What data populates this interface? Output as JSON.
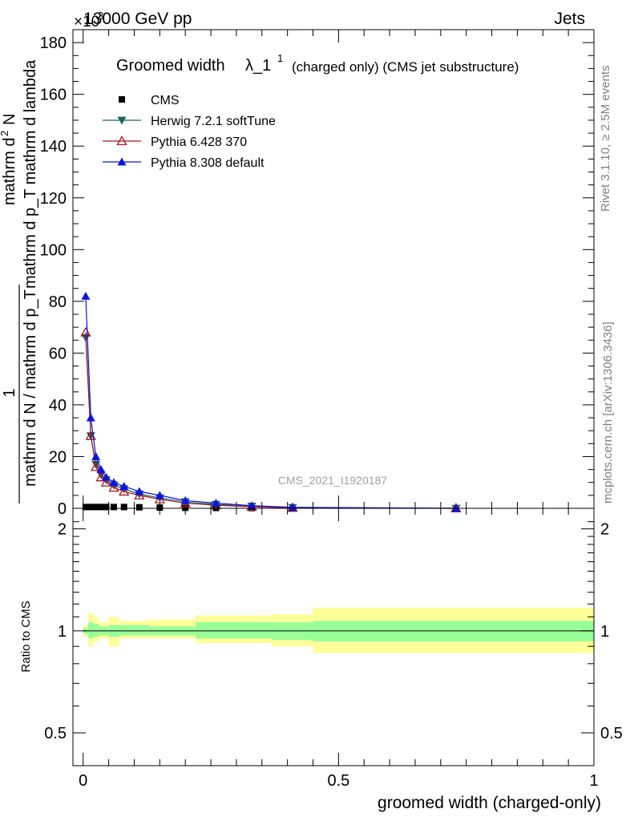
{
  "header": {
    "left": "13000 GeV pp",
    "right": "Jets",
    "exponent": "×10",
    "exponent_power": "3"
  },
  "side_labels": {
    "rivet": "Rivet 3.1.10, ≥ 2.5M events",
    "mcplots": "mcplots.cern.ch [arXiv:1306.3436]"
  },
  "watermark": "CMS_2021_I1920187",
  "main_title": {
    "text": "Groomed width",
    "symbol": "λ_1",
    "sup": "1",
    "suffix": "(charged only) (CMS jet substructure)"
  },
  "ylabel": {
    "numerator_line1": "mathrm d",
    "numerator_sup": "2",
    "numerator_line2": "N",
    "denominator": "mathrm d p_T mathrm d lambda",
    "prefix_num": "1",
    "prefix_den": "mathrm d N / mathrm d p_T"
  },
  "ratio_ylabel": "Ratio to CMS",
  "xlabel": "groomed width (charged-only)",
  "colors": {
    "cms": "#000000",
    "herwig": "#1f6363",
    "pythia6": "#a3191f",
    "pythia8": "#0a14e0",
    "band_outer": "#ffff99",
    "band_inner": "#99ff99"
  },
  "chart_data": [
    {
      "type": "line",
      "panel": "main",
      "ylim": [
        0,
        185
      ],
      "xlim": [
        -0.02,
        1.0
      ],
      "y_scale_factor": "×10^3",
      "y_ticks": [
        0,
        20,
        40,
        60,
        80,
        100,
        120,
        140,
        160,
        180
      ],
      "x_ticks": [
        0,
        0.5,
        1
      ],
      "x_tick_labels": [
        "0",
        "0.5",
        "1"
      ],
      "legend": "top-left",
      "series": [
        {
          "name": "CMS",
          "marker": "square",
          "x": [
            0.005,
            0.015,
            0.025,
            0.035,
            0.045,
            0.06,
            0.08,
            0.11,
            0.15,
            0.2,
            0.26,
            0.33,
            0.41,
            0.73
          ],
          "y": [
            0.5,
            0.5,
            0.5,
            0.5,
            0.5,
            0.5,
            0.5,
            0.4,
            0.3,
            0.2,
            0.15,
            0.1,
            0.05,
            0.0
          ]
        },
        {
          "name": "Herwig 7.2.1 softTune",
          "marker": "triangle-down",
          "x": [
            0.005,
            0.015,
            0.025,
            0.035,
            0.045,
            0.06,
            0.08,
            0.11,
            0.15,
            0.2,
            0.26,
            0.33,
            0.41,
            0.73
          ],
          "y": [
            66,
            28,
            17,
            13,
            11,
            9,
            7.5,
            5.5,
            4,
            2.5,
            1.5,
            0.8,
            0.3,
            0.0
          ]
        },
        {
          "name": "Pythia 6.428 370",
          "marker": "triangle-up-open",
          "x": [
            0.005,
            0.015,
            0.025,
            0.035,
            0.045,
            0.06,
            0.08,
            0.11,
            0.15,
            0.2,
            0.26,
            0.33,
            0.41,
            0.73
          ],
          "y": [
            68,
            28,
            16,
            12,
            10,
            8,
            6.5,
            5,
            3.5,
            2,
            1.2,
            0.6,
            0.2,
            0.0
          ]
        },
        {
          "name": "Pythia 8.308 default",
          "marker": "triangle-up",
          "x": [
            0.005,
            0.015,
            0.025,
            0.035,
            0.045,
            0.06,
            0.08,
            0.11,
            0.15,
            0.2,
            0.26,
            0.33,
            0.41,
            0.73
          ],
          "y": [
            82,
            35,
            20,
            15,
            12,
            10,
            8.5,
            6.5,
            5,
            3,
            2,
            1,
            0.4,
            0.0
          ]
        }
      ]
    },
    {
      "type": "area",
      "panel": "ratio",
      "ylabel": "Ratio to CMS",
      "xlabel": "groomed width (charged-only)",
      "ylim": [
        0.4,
        2.3
      ],
      "y_scale": "log",
      "y_ticks": [
        0.5,
        1,
        2
      ],
      "y_tick_labels": [
        "0.5",
        "1",
        "2"
      ],
      "reference_line": 1,
      "bins": [
        [
          0.0,
          0.01
        ],
        [
          0.01,
          0.02
        ],
        [
          0.02,
          0.03
        ],
        [
          0.03,
          0.05
        ],
        [
          0.05,
          0.07
        ],
        [
          0.07,
          0.13
        ],
        [
          0.13,
          0.22
        ],
        [
          0.22,
          0.37
        ],
        [
          0.37,
          0.45
        ],
        [
          0.45,
          1.0
        ]
      ],
      "outer_band": [
        [
          0.96,
          1.04
        ],
        [
          0.9,
          1.13
        ],
        [
          0.93,
          1.1
        ],
        [
          0.95,
          1.06
        ],
        [
          0.9,
          1.1
        ],
        [
          0.95,
          1.07
        ],
        [
          0.95,
          1.08
        ],
        [
          0.92,
          1.11
        ],
        [
          0.9,
          1.12
        ],
        [
          0.86,
          1.17
        ]
      ],
      "inner_band": [
        [
          0.98,
          1.02
        ],
        [
          0.95,
          1.06
        ],
        [
          0.96,
          1.05
        ],
        [
          0.97,
          1.03
        ],
        [
          0.96,
          1.04
        ],
        [
          0.97,
          1.04
        ],
        [
          0.97,
          1.03
        ],
        [
          0.95,
          1.06
        ],
        [
          0.94,
          1.06
        ],
        [
          0.93,
          1.07
        ]
      ]
    }
  ]
}
